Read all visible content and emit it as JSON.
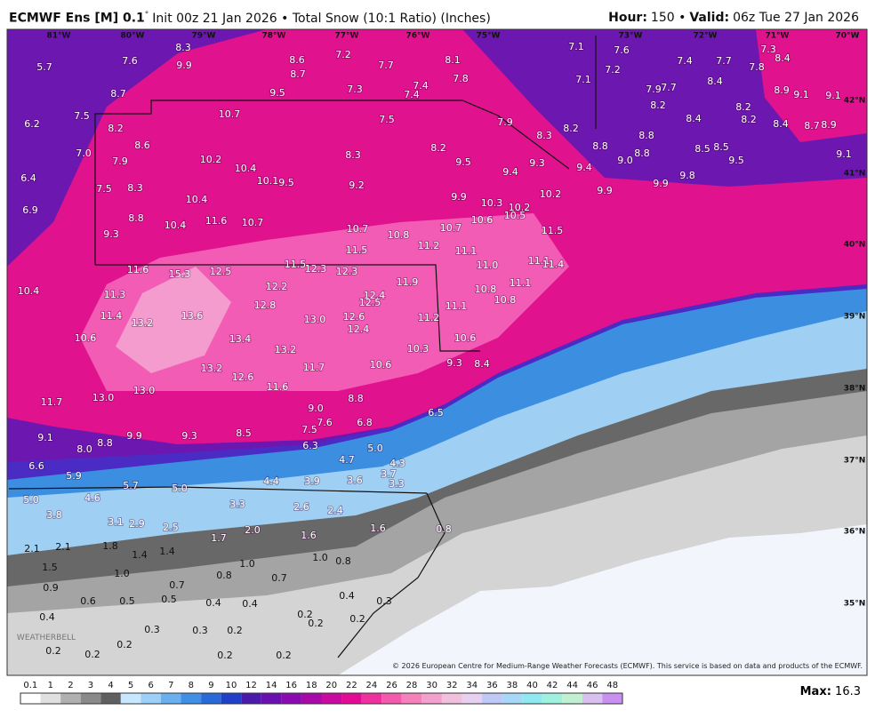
{
  "header": {
    "title_bold": "ECMWF Ens [M] 0.1",
    "title_degree": "°",
    "title_rest": "Init 00z 21 Jan 2026 • Total Snow (10:1 Ratio) (Inches)",
    "hour_label": "Hour:",
    "hour_rest": "150 •",
    "valid_label": "Valid:",
    "valid_rest": "06z Tue 27 Jan 2026"
  },
  "map": {
    "lon_labels": [
      "81°W",
      "80°W",
      "79°W",
      "78°W",
      "77°W",
      "76°W",
      "75°W",
      "73°W",
      "72°W",
      "71°W",
      "70°W"
    ],
    "lat_labels": [
      "42°N",
      "41°N",
      "40°N",
      "39°N",
      "38°N",
      "37°N",
      "36°N",
      "35°N"
    ],
    "snow_labels": [
      "5.7",
      "7.6",
      "8.3",
      "9.9",
      "8.6",
      "8.7",
      "7.2",
      "7.7",
      "8.1",
      "7.1",
      "7.6",
      "7.3",
      "8.4",
      "7.4",
      "7.7",
      "7.8",
      "7.2",
      "7.1",
      "7.8",
      "7.4",
      "7.4",
      "7.3",
      "9.5",
      "8.7",
      "8.4",
      "7.9",
      "7.7",
      "8.9",
      "9.1",
      "9.1",
      "8.2",
      "8.2",
      "7.5",
      "6.2",
      "10.7",
      "7.5",
      "7.9",
      "8.3",
      "8.2",
      "8.4",
      "8.2",
      "8.4",
      "8.7",
      "8.9",
      "8.2",
      "8.8",
      "8.8",
      "8.6",
      "7.0",
      "8.2",
      "8.3",
      "8.5",
      "8.5",
      "9.0",
      "8.8",
      "9.1",
      "9.5",
      "7.9",
      "10.2",
      "10.4",
      "9.5",
      "9.3",
      "9.4",
      "9.4",
      "9.8",
      "9.9",
      "6.4",
      "10.1",
      "9.5",
      "9.2",
      "8.3",
      "7.5",
      "9.9",
      "10.2",
      "10.4",
      "9.9",
      "10.3",
      "10.2",
      "10.5",
      "6.9",
      "8.8",
      "10.6",
      "10.4",
      "11.6",
      "10.7",
      "10.7",
      "10.8",
      "10.7",
      "11.5",
      "9.3",
      "11.2",
      "11.5",
      "11.1",
      "11.0",
      "11.1",
      "11.4",
      "11.6",
      "15.3",
      "12.5",
      "11.5",
      "12.3",
      "12.3",
      "12.2",
      "11.9",
      "10.4",
      "11.3",
      "10.8",
      "11.1",
      "12.4",
      "12.5",
      "10.8",
      "12.8",
      "11.1",
      "11.4",
      "13.6",
      "13.0",
      "12.6",
      "12.4",
      "11.2",
      "13.2",
      "10.6",
      "13.4",
      "10.6",
      "13.2",
      "10.3",
      "10.6",
      "9.3",
      "8.4",
      "13.2",
      "11.7",
      "12.6",
      "11.6",
      "13.0",
      "13.0",
      "8.8",
      "11.7",
      "9.0",
      "6.5",
      "7.6",
      "6.8",
      "7.5",
      "8.5",
      "9.3",
      "9.9",
      "9.1",
      "8.8",
      "8.0",
      "6.3",
      "5.0",
      "4.7",
      "4.3",
      "6.6",
      "3.7",
      "5.9",
      "4.4",
      "3.9",
      "3.6",
      "3.3",
      "5.7",
      "5.0",
      "4.6",
      "5.0",
      "3.3",
      "2.6",
      "2.4",
      "3.8",
      "3.1",
      "2.9",
      "2.5",
      "1.6",
      "0.8",
      "2.0",
      "1.7",
      "1.6",
      "1.8",
      "2.1",
      "2.1",
      "1.4",
      "1.4",
      "1.0",
      "0.8",
      "1.5",
      "1.0",
      "1.0",
      "0.8",
      "0.7",
      "0.7",
      "0.9",
      "0.6",
      "0.5",
      "0.5",
      "0.4",
      "0.4",
      "0.4",
      "0.3",
      "0.4",
      "0.2",
      "0.2",
      "0.2",
      "0.3",
      "0.3",
      "0.2",
      "0.2",
      "0.2",
      "0.2",
      "0.2",
      "0.2"
    ],
    "logo": "WEATHERBELL",
    "copyright": "© 2026 European Centre for Medium-Range Weather Forecasts (ECMWF). This service is based on data and products of the ECMWF."
  },
  "colorbar": {
    "labels": [
      "0.1",
      "1",
      "2",
      "3",
      "4",
      "5",
      "6",
      "7",
      "8",
      "9",
      "10",
      "12",
      "14",
      "16",
      "18",
      "20",
      "22",
      "24",
      "26",
      "28",
      "30",
      "32",
      "34",
      "36",
      "38",
      "40",
      "42",
      "44",
      "46",
      "48"
    ]
  },
  "footer": {
    "max_label": "Max:",
    "max_value": "16.3"
  }
}
